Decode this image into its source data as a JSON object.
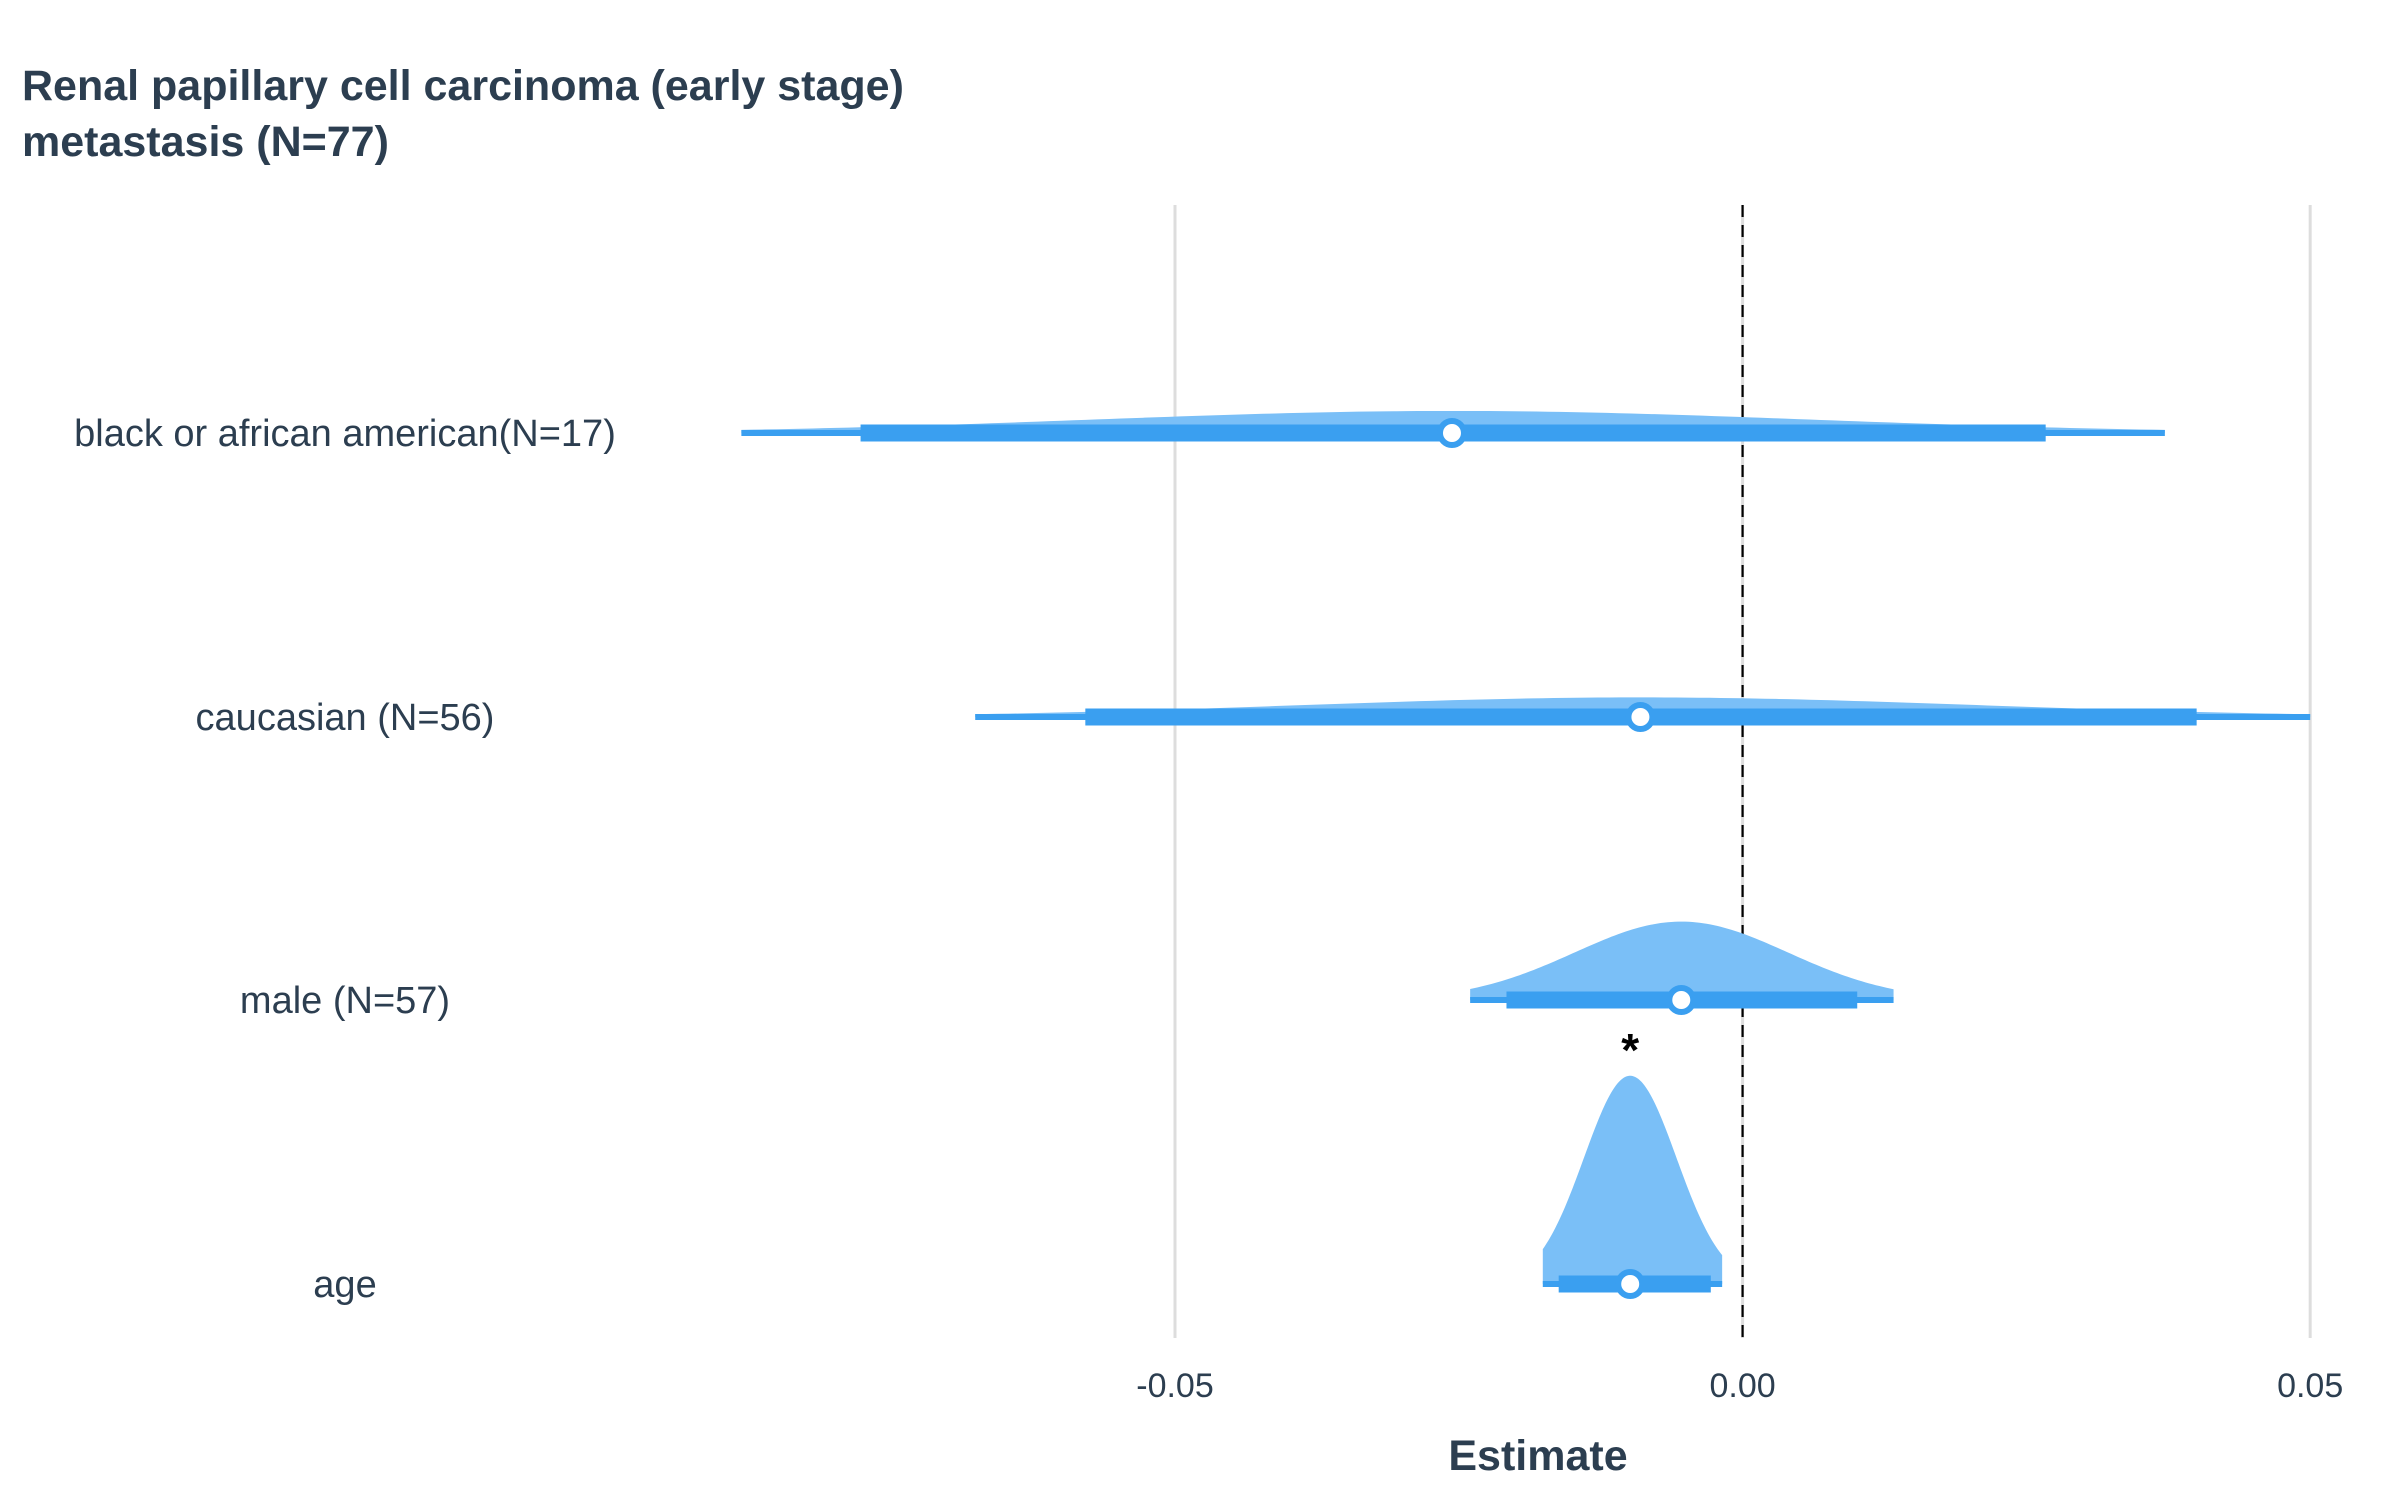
{
  "chart_data": {
    "type": "forest",
    "title": [
      "Renal papillary cell carcinoma (early stage)",
      "metastasis (N=77)"
    ],
    "xlabel": "Estimate",
    "ylabel": "",
    "xlim": [
      -0.087,
      0.0521
    ],
    "x_ticks": [
      -0.05,
      0.0,
      0.05
    ],
    "x_tick_labels": [
      "-0.05",
      "0.00",
      "0.05"
    ],
    "reference_line": 0.0,
    "grid": "vertical",
    "colors": {
      "density": "#7abff7",
      "interval": "#3a9ff0",
      "point_fill": "#ffffff",
      "text": "#2c3e50",
      "grid": "#dddddd",
      "reference": "#000000"
    },
    "rows": [
      {
        "label": "black or african american(N=17)",
        "estimate": -0.0256,
        "thick": [
          -0.0777,
          0.0267
        ],
        "thin": [
          -0.0882,
          0.0372
        ],
        "density_height": 0.09,
        "significant": false,
        "sig_mark": ""
      },
      {
        "label": "caucasian (N=56)",
        "estimate": -0.009,
        "thick": [
          -0.0579,
          0.04
        ],
        "thin": [
          -0.0676,
          0.05
        ],
        "density_height": 0.08,
        "significant": false,
        "sig_mark": ""
      },
      {
        "label": "male (N=57)",
        "estimate": -0.0054,
        "thick": [
          -0.0208,
          0.0101
        ],
        "thin": [
          -0.024,
          0.0133
        ],
        "density_height": 0.32,
        "significant": false,
        "sig_mark": ""
      },
      {
        "label": "age",
        "estimate": -0.0099,
        "thick": [
          -0.0162,
          -0.0028
        ],
        "thin": [
          -0.0176,
          -0.0018
        ],
        "density_height": 0.85,
        "significant": true,
        "sig_mark": "*"
      }
    ]
  }
}
